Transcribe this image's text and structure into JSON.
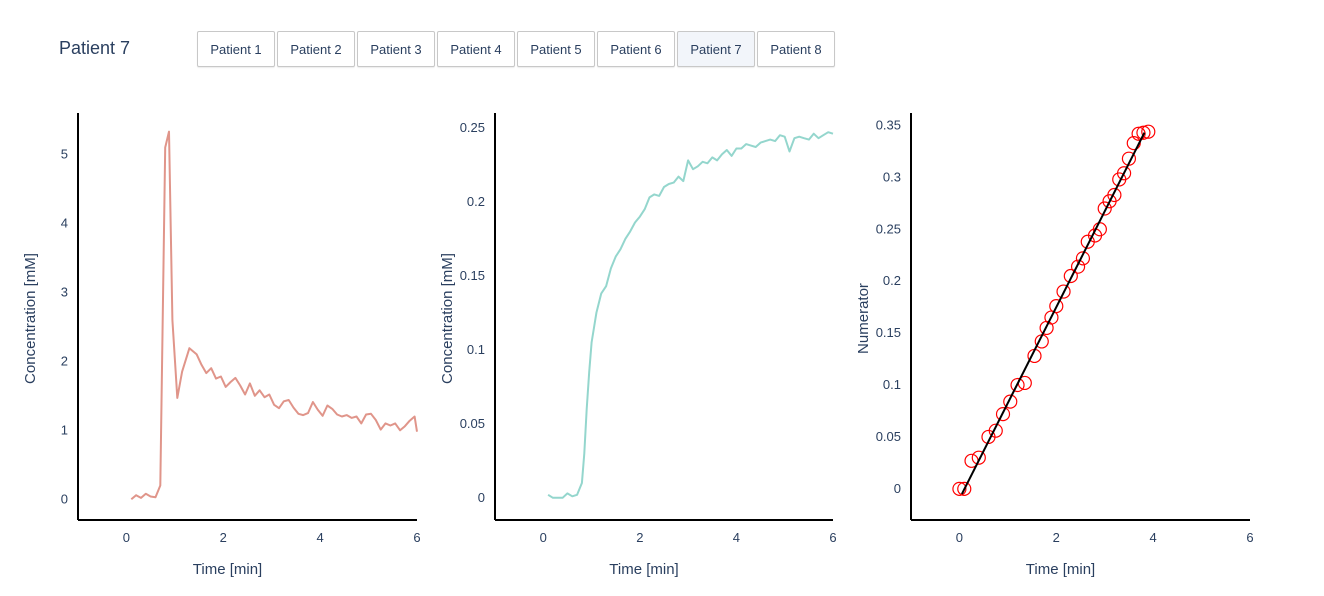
{
  "header": {
    "title": "Patient 7",
    "tabs": [
      "Patient 1",
      "Patient 2",
      "Patient 3",
      "Patient 4",
      "Patient 5",
      "Patient 6",
      "Patient 7",
      "Patient 8"
    ],
    "active_tab": "Patient 7"
  },
  "chart_data": [
    {
      "type": "line",
      "color": "#e0958a",
      "xlabel": "Time [min]",
      "ylabel": "Concentration [mM]",
      "xlim": [
        -1,
        6
      ],
      "ylim": [
        -0.3,
        5.6
      ],
      "xticks": [
        0,
        2,
        4,
        6
      ],
      "yticks": [
        0,
        1,
        2,
        3,
        4,
        5
      ],
      "x": [
        0.1,
        0.2,
        0.3,
        0.4,
        0.5,
        0.6,
        0.7,
        0.72,
        0.8,
        0.88,
        0.95,
        1.05,
        1.15,
        1.3,
        1.45,
        1.55,
        1.65,
        1.75,
        1.85,
        1.95,
        2.05,
        2.15,
        2.25,
        2.35,
        2.45,
        2.55,
        2.65,
        2.75,
        2.85,
        2.95,
        3.05,
        3.15,
        3.25,
        3.35,
        3.45,
        3.55,
        3.65,
        3.75,
        3.85,
        3.95,
        4.05,
        4.15,
        4.25,
        4.35,
        4.45,
        4.55,
        4.65,
        4.75,
        4.85,
        4.95,
        5.05,
        5.15,
        5.25,
        5.35,
        5.45,
        5.55,
        5.65,
        5.75,
        5.85,
        5.95,
        6.0
      ],
      "y": [
        0.0,
        0.06,
        0.02,
        0.08,
        0.04,
        0.03,
        0.2,
        1.2,
        5.1,
        5.33,
        2.6,
        1.47,
        1.85,
        2.19,
        2.1,
        1.95,
        1.83,
        1.9,
        1.75,
        1.78,
        1.63,
        1.7,
        1.76,
        1.65,
        1.52,
        1.68,
        1.5,
        1.58,
        1.48,
        1.52,
        1.37,
        1.32,
        1.42,
        1.44,
        1.33,
        1.24,
        1.22,
        1.25,
        1.41,
        1.3,
        1.21,
        1.36,
        1.31,
        1.23,
        1.2,
        1.22,
        1.18,
        1.2,
        1.1,
        1.23,
        1.24,
        1.15,
        1.01,
        1.1,
        1.07,
        1.1,
        1.0,
        1.06,
        1.14,
        1.2,
        0.98
      ],
      "data_x_end": 6.0
    },
    {
      "type": "line",
      "color": "#94d6cd",
      "xlabel": "Time [min]",
      "ylabel": "Concentration [mM]",
      "xlim": [
        -1,
        6
      ],
      "ylim": [
        -0.015,
        0.26
      ],
      "xticks": [
        0,
        2,
        4,
        6
      ],
      "yticks": [
        0,
        0.05,
        0.1,
        0.15,
        0.2,
        0.25
      ],
      "x": [
        0.1,
        0.2,
        0.3,
        0.4,
        0.5,
        0.6,
        0.7,
        0.8,
        0.85,
        0.9,
        0.95,
        1.0,
        1.05,
        1.1,
        1.2,
        1.3,
        1.4,
        1.5,
        1.6,
        1.7,
        1.8,
        1.9,
        2.0,
        2.1,
        2.2,
        2.3,
        2.4,
        2.5,
        2.6,
        2.7,
        2.8,
        2.9,
        3.0,
        3.1,
        3.2,
        3.3,
        3.4,
        3.5,
        3.6,
        3.7,
        3.8,
        3.9,
        4.0,
        4.1,
        4.2,
        4.3,
        4.4,
        4.5,
        4.6,
        4.7,
        4.8,
        4.9,
        5.0,
        5.1,
        5.2,
        5.3,
        5.4,
        5.5,
        5.6,
        5.7,
        5.8,
        5.9,
        6.0
      ],
      "y": [
        0.002,
        0.0,
        0.0,
        0.0,
        0.003,
        0.001,
        0.002,
        0.01,
        0.03,
        0.06,
        0.085,
        0.105,
        0.115,
        0.125,
        0.138,
        0.143,
        0.155,
        0.163,
        0.168,
        0.175,
        0.18,
        0.186,
        0.19,
        0.195,
        0.203,
        0.205,
        0.204,
        0.21,
        0.212,
        0.213,
        0.217,
        0.214,
        0.228,
        0.222,
        0.224,
        0.227,
        0.226,
        0.23,
        0.228,
        0.232,
        0.235,
        0.231,
        0.236,
        0.236,
        0.239,
        0.238,
        0.237,
        0.24,
        0.241,
        0.242,
        0.241,
        0.245,
        0.244,
        0.234,
        0.243,
        0.244,
        0.243,
        0.242,
        0.246,
        0.243,
        0.245,
        0.247,
        0.246
      ],
      "data_x_end": 6.0
    },
    {
      "type": "scatter",
      "marker_color": "#ff0000",
      "line_color": "#000000",
      "xlabel": "Time [min]",
      "ylabel": "Numerator",
      "xlim": [
        -1,
        6
      ],
      "ylim": [
        -0.03,
        0.362
      ],
      "xticks": [
        0,
        2,
        4,
        6
      ],
      "yticks": [
        0,
        0.05,
        0.1,
        0.15,
        0.2,
        0.25,
        0.3,
        0.35
      ],
      "x": [
        0.0,
        0.1,
        0.25,
        0.4,
        0.6,
        0.75,
        0.9,
        1.05,
        1.2,
        1.35,
        1.55,
        1.7,
        1.8,
        1.9,
        2.0,
        2.15,
        2.3,
        2.45,
        2.55,
        2.65,
        2.8,
        2.9,
        3.0,
        3.1,
        3.2,
        3.3,
        3.4,
        3.5,
        3.6,
        3.7,
        3.8,
        3.9
      ],
      "y": [
        0.0,
        0.0,
        0.027,
        0.03,
        0.05,
        0.056,
        0.072,
        0.084,
        0.1,
        0.102,
        0.128,
        0.142,
        0.155,
        0.165,
        0.176,
        0.19,
        0.205,
        0.214,
        0.222,
        0.238,
        0.244,
        0.25,
        0.27,
        0.277,
        0.283,
        0.298,
        0.304,
        0.318,
        0.333,
        0.342,
        0.343,
        0.344
      ],
      "fit_line": {
        "x": [
          0.05,
          3.82
        ],
        "y": [
          -0.005,
          0.343
        ]
      }
    }
  ]
}
